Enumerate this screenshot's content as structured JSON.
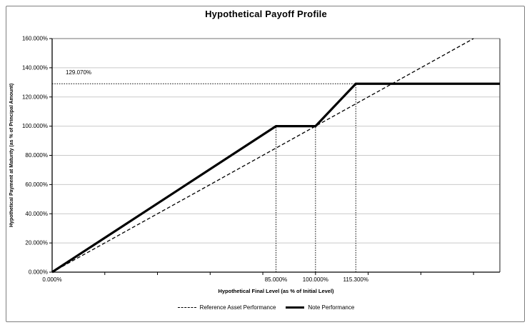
{
  "window": {
    "background": "#ffffff",
    "border_color": "#7f7f7f"
  },
  "chart_data": {
    "type": "line",
    "title": "Hypothetical Payoff Profile",
    "xlabel": "Hypothetical Final Level (as % of Initial Level)",
    "ylabel": "Hypothetical Payment at Maturity (as % of Principal Amount)",
    "xlim": [
      0,
      170
    ],
    "ylim": [
      0,
      160
    ],
    "grid": "horizontal-only",
    "legend_position": "bottom-center",
    "x_axis": {
      "minor_tick_values": [
        20,
        40,
        60,
        80,
        100,
        120,
        140,
        160
      ],
      "labeled_ticks": [
        {
          "value": 0,
          "label": "0.000%"
        },
        {
          "value": 85,
          "label": "85.000%"
        },
        {
          "value": 100,
          "label": "100.000%"
        },
        {
          "value": 115.3,
          "label": "115.300%"
        }
      ]
    },
    "y_axis": {
      "ticks": [
        {
          "value": 0,
          "label": "0.000%"
        },
        {
          "value": 20,
          "label": "20.000%"
        },
        {
          "value": 40,
          "label": "40.000%"
        },
        {
          "value": 60,
          "label": "60.000%"
        },
        {
          "value": 80,
          "label": "80.000%"
        },
        {
          "value": 100,
          "label": "100.000%"
        },
        {
          "value": 120,
          "label": "120.000%"
        },
        {
          "value": 140,
          "label": "140.000%"
        },
        {
          "value": 160,
          "label": "160.000%"
        }
      ]
    },
    "series": [
      {
        "name": "Reference Asset Performance",
        "style": "dashed",
        "stroke_width": 1.3,
        "points": [
          [
            0,
            0
          ],
          [
            160,
            160
          ]
        ]
      },
      {
        "name": "Note Performance",
        "style": "solid",
        "stroke_width": 3.2,
        "points": [
          [
            0,
            0
          ],
          [
            85,
            100
          ],
          [
            100,
            100
          ],
          [
            115.3,
            129.07
          ],
          [
            170,
            129.07
          ]
        ]
      }
    ],
    "guides": {
      "vertical_dotted": [
        {
          "x": 85,
          "y_top": 100
        },
        {
          "x": 100,
          "y_top": 100
        },
        {
          "x": 115.3,
          "y_top": 129.07
        }
      ],
      "horizontal_dotted": [
        {
          "y": 129.07,
          "x_from": 0,
          "x_to": 115.3
        }
      ]
    },
    "annotation": {
      "label": "129.070%",
      "x": 8.5,
      "y": 129.07
    },
    "legend": {
      "entries": [
        {
          "label": "Reference Asset Performance",
          "style": "dashed"
        },
        {
          "label": "Note Performance",
          "style": "solid"
        }
      ]
    },
    "colors": {
      "line": "#000000",
      "gridline": "#c9c9c9",
      "plot_border_top": "#737373",
      "plot_border_right": "#404040",
      "axis": "#000000"
    }
  }
}
